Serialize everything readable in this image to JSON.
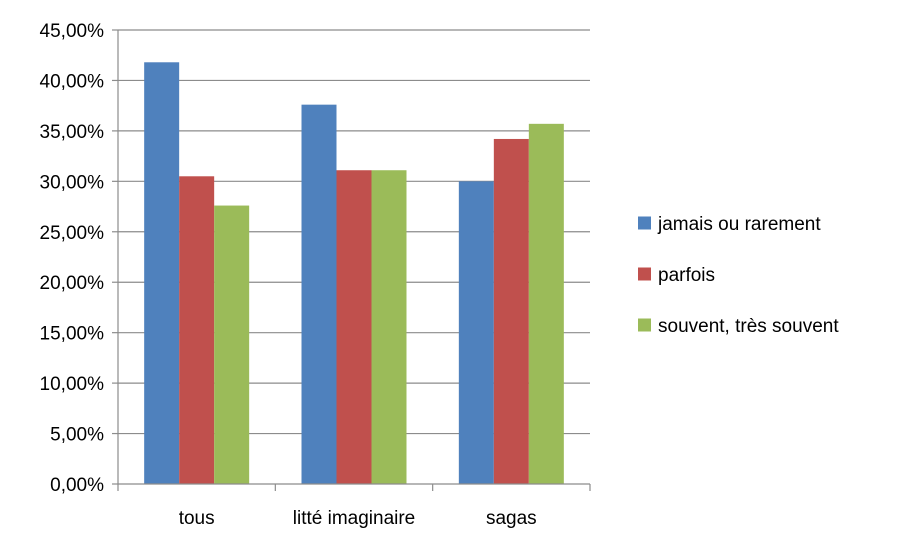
{
  "chart_data": {
    "type": "bar",
    "title": "",
    "xlabel": "",
    "ylabel": "",
    "categories": [
      "tous",
      "litté imaginaire",
      "sagas"
    ],
    "series": [
      {
        "name": "jamais ou rarement",
        "color": "#4F81BD",
        "values": [
          41.8,
          37.6,
          30.0
        ]
      },
      {
        "name": "parfois",
        "color": "#C0504D",
        "values": [
          30.5,
          31.1,
          34.2
        ]
      },
      {
        "name": "souvent, très souvent",
        "color": "#9BBB59",
        "values": [
          27.6,
          31.1,
          35.7
        ]
      }
    ],
    "ylim": [
      0,
      45
    ],
    "ytick_labels": [
      "0,00%",
      "5,00%",
      "10,00%",
      "15,00%",
      "20,00%",
      "25,00%",
      "30,00%",
      "35,00%",
      "40,00%",
      "45,00%"
    ],
    "grid": true,
    "legend_position": "right"
  }
}
